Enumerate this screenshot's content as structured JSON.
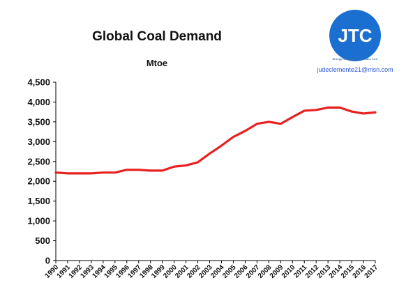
{
  "chart_data": {
    "type": "line",
    "title": "Global Coal Demand",
    "subtitle": "Mtoe",
    "xlabel": "",
    "ylabel": "",
    "ylim": [
      0,
      4500
    ],
    "yticks": [
      "0",
      "500",
      "1,000",
      "1,500",
      "2,000",
      "2,500",
      "3,000",
      "3,500",
      "4,000",
      "4,500"
    ],
    "ytick_values": [
      0,
      500,
      1000,
      1500,
      2000,
      2500,
      3000,
      3500,
      4000,
      4500
    ],
    "grid": false,
    "legend": "none",
    "x": [
      "1990",
      "1991",
      "1992",
      "1993",
      "1994",
      "1995",
      "1996",
      "1997",
      "1998",
      "1999",
      "2000",
      "2001",
      "2002",
      "2003",
      "2004",
      "2005",
      "2006",
      "2007",
      "2008",
      "2009",
      "2010",
      "2011",
      "2012",
      "2013",
      "2014",
      "2015",
      "2016",
      "2017"
    ],
    "series": [
      {
        "color": "#e8201f",
        "values": [
          2220,
          2200,
          2200,
          2200,
          2220,
          2220,
          2290,
          2290,
          2270,
          2270,
          2370,
          2400,
          2480,
          2700,
          2900,
          3120,
          3270,
          3450,
          3500,
          3450,
          3620,
          3780,
          3800,
          3860,
          3860,
          3760,
          3710,
          3740
        ]
      }
    ]
  },
  "logo": {
    "text": "JTC",
    "subtext": "Energy Research Associates, LLC",
    "color": "#1a6fd1"
  },
  "email": "judeclemente21@msn.com"
}
